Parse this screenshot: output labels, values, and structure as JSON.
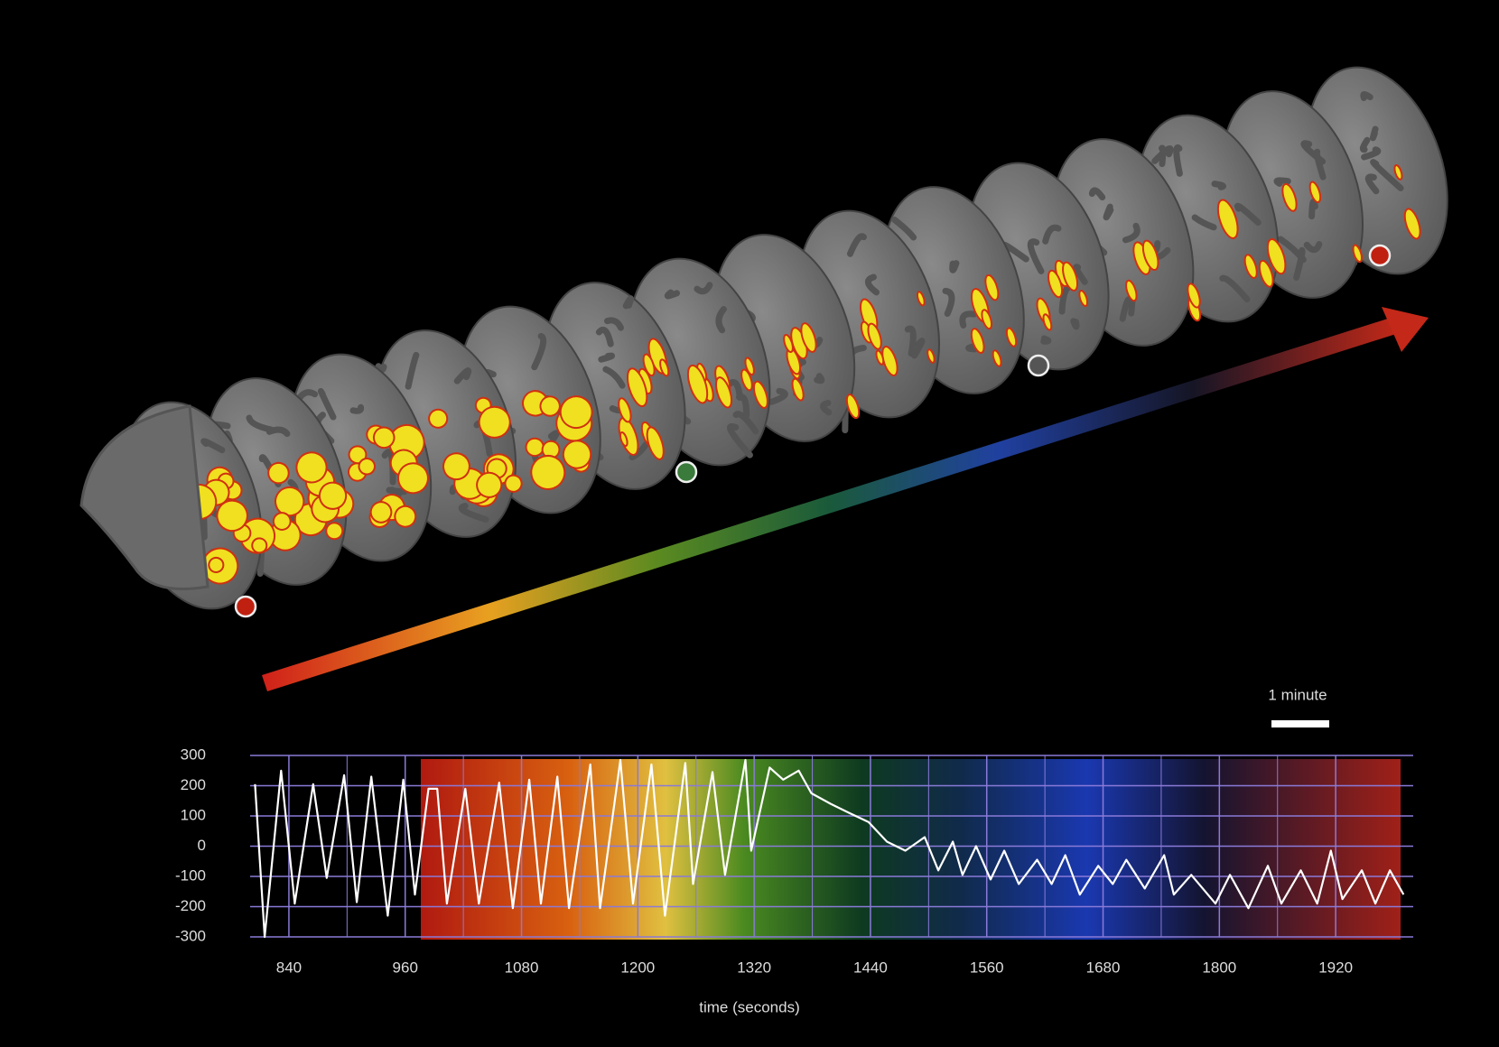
{
  "chart_data": {
    "type": "line",
    "xlabel": "time (seconds)",
    "annotation": "1 minute",
    "color": "#ffffff",
    "grid": true,
    "xlim": [
      800,
      2000
    ],
    "ylim": [
      -300,
      300
    ],
    "xticks": [
      840,
      960,
      1080,
      1200,
      1320,
      1440,
      1560,
      1680,
      1800,
      1920
    ],
    "yticks": [
      300,
      200,
      100,
      0,
      -100,
      -200,
      -300
    ],
    "x": [
      805,
      815,
      832,
      846,
      865,
      879,
      897,
      910,
      925,
      942,
      958,
      970,
      984,
      993,
      1003,
      1022,
      1036,
      1057,
      1071,
      1088,
      1100,
      1117,
      1129,
      1151,
      1161,
      1182,
      1195,
      1214,
      1228,
      1249,
      1257,
      1277,
      1290,
      1311,
      1317,
      1336,
      1350,
      1366,
      1379,
      1399,
      1418,
      1438,
      1457,
      1476,
      1496,
      1510,
      1525,
      1535,
      1549,
      1564,
      1578,
      1593,
      1612,
      1627,
      1641,
      1656,
      1675,
      1690,
      1704,
      1723,
      1743,
      1753,
      1771,
      1796,
      1811,
      1830,
      1850,
      1864,
      1884,
      1901,
      1915,
      1927,
      1947,
      1961,
      1976,
      1990
    ],
    "values": [
      205,
      -300,
      250,
      -190,
      205,
      -105,
      235,
      -185,
      230,
      -230,
      220,
      -160,
      190,
      190,
      -190,
      190,
      -190,
      210,
      -205,
      220,
      -190,
      230,
      -205,
      270,
      -205,
      285,
      -190,
      270,
      -230,
      275,
      -125,
      245,
      -95,
      285,
      -15,
      260,
      220,
      250,
      175,
      140,
      110,
      80,
      15,
      -15,
      30,
      -80,
      15,
      -95,
      0,
      -110,
      -15,
      -125,
      -45,
      -125,
      -30,
      -160,
      -65,
      -125,
      -45,
      -140,
      -30,
      -160,
      -95,
      -190,
      -95,
      -205,
      -65,
      -190,
      -80,
      -190,
      -15,
      -175,
      -80,
      -190,
      -80,
      -160
    ]
  }
}
